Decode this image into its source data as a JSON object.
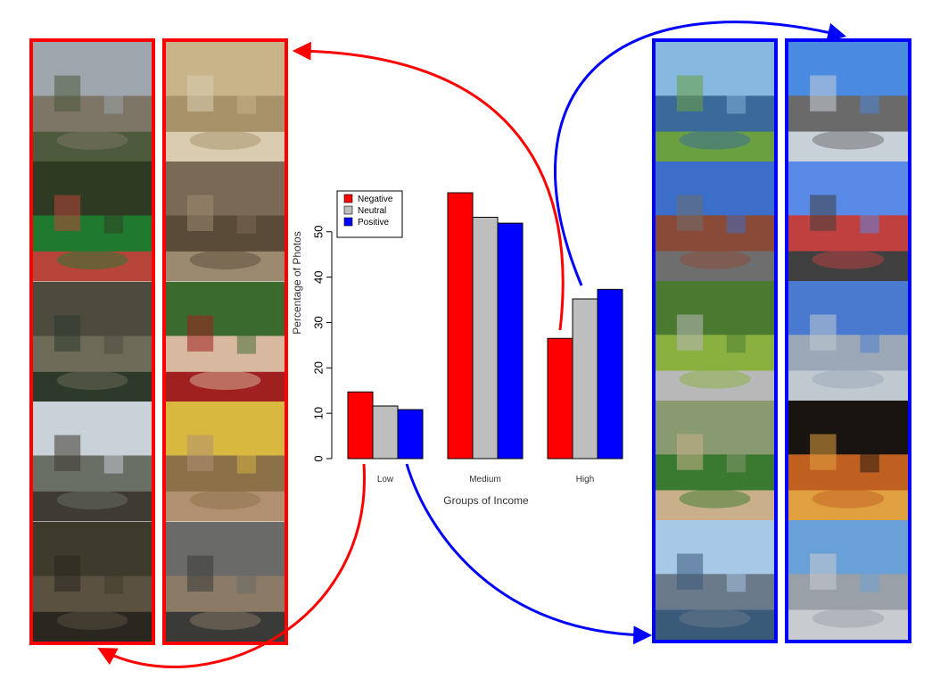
{
  "colors": {
    "red": "#ff0000",
    "blue": "#0000ff",
    "negative": "#ff0000",
    "neutral": "#bebebe",
    "positive": "#0000ff"
  },
  "panels": {
    "negative_photos": [
      [
        "demolished-houses-photo",
        "toxic-waste-debris-photo",
        "chainlink-fence-junk-photo",
        "snowy-street-workers-photo",
        "crowd-in-brush-photo"
      ],
      [
        "brick-rubble-sand-photo",
        "scrap-metal-pile-photo",
        "bloody-zombie-face-photo",
        "cardboard-trash-cage-photo",
        "splashing-feet-photo"
      ]
    ],
    "positive_photos": [
      [
        "harbor-sailboats-photo",
        "suburban-houses-street-photo",
        "cyclists-race-photo",
        "baseball-game-photo",
        "city-skyline-lake-photo"
      ],
      [
        "skyscraper-tower-photo",
        "ferris-wheel-photo",
        "modern-pavilion-photo",
        "night-pavilion-lights-photo",
        "cloud-gate-sculpture-photo"
      ]
    ]
  },
  "chart_data": {
    "type": "bar",
    "categories": [
      "Low",
      "Medium",
      "High"
    ],
    "series": [
      {
        "name": "Negative",
        "values": [
          14.7,
          58.6,
          26.5
        ]
      },
      {
        "name": "Neutral",
        "values": [
          11.6,
          53.2,
          35.2
        ]
      },
      {
        "name": "Positive",
        "values": [
          10.8,
          51.9,
          37.3
        ]
      }
    ],
    "xlabel": "Groups of Income",
    "ylabel": "Percentage of Photos",
    "ylim": [
      0,
      59
    ],
    "yticks": [
      0,
      10,
      20,
      30,
      40,
      50
    ],
    "legend": "top-left",
    "grid": false
  }
}
